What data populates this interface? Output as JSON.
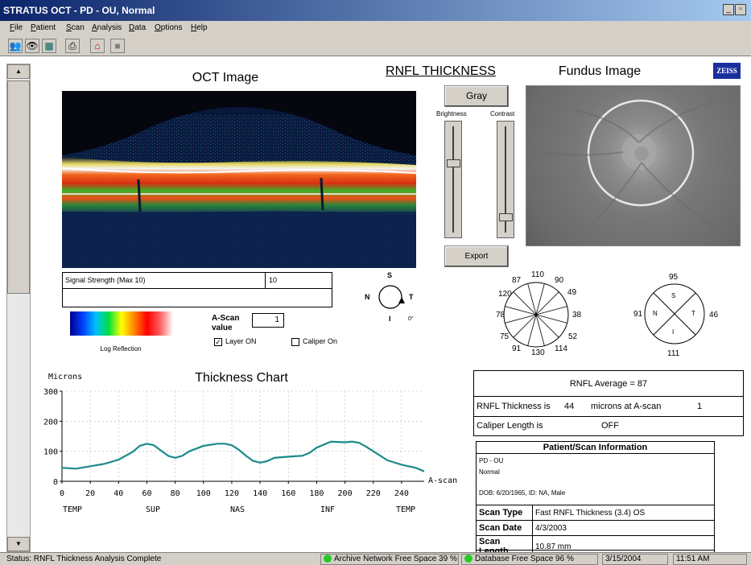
{
  "window": {
    "title": "STRATUS OCT - PD - OU, Normal",
    "logo_text": "zeiss",
    "controls": [
      "_",
      "▫",
      "×"
    ]
  },
  "menu": [
    "File",
    "Patient",
    "Scan",
    "Analysis",
    "Data",
    "Options",
    "Help"
  ],
  "toolbar": {
    "icons": [
      "patients-icon",
      "eye-icon",
      "scan-icon",
      "print-icon",
      "home-icon",
      "stop-icon"
    ]
  },
  "headings": {
    "oct": "OCT Image",
    "rnfl": "RNFL THICKNESS",
    "fundus": "Fundus Image",
    "brand": "ZEISS"
  },
  "controls": {
    "gray_button": "Gray",
    "brightness": "Brightness",
    "contrast": "Contrast",
    "export_button": "Export",
    "brightness_level": 0.32,
    "contrast_level": 0.82
  },
  "signal": {
    "label": "Signal Strength (Max 10)",
    "value": "10"
  },
  "legend": {
    "label": "Log Reflection"
  },
  "ascan": {
    "label_line1": "A-Scan",
    "label_line2": "value",
    "value": "1"
  },
  "checkboxes": {
    "layer_label": "Layer ON",
    "layer_checked": true,
    "caliper_label": "Caliper On",
    "caliper_checked": false
  },
  "orientation": {
    "S": "S",
    "N": "N",
    "T": "T",
    "I": "I",
    "deg": "0°"
  },
  "clock_values": [
    "110",
    "90",
    "49",
    "38",
    "52",
    "114",
    "130",
    "91",
    "75",
    "78",
    "120",
    "87"
  ],
  "quadrant_values": {
    "S": "95",
    "N": "91",
    "T": "46",
    "I": "111",
    "S_label": "S",
    "N_label": "N",
    "T_label": "T",
    "I_label": "I"
  },
  "thickness_chart": {
    "title": "Thickness Chart",
    "ylabel": "Microns",
    "xlabel": "A-scan",
    "y_ticks": [
      "0",
      "100",
      "200",
      "300"
    ],
    "x_ticks": [
      "0",
      "20",
      "40",
      "60",
      "80",
      "100",
      "120",
      "140",
      "160",
      "180",
      "200",
      "220",
      "240"
    ],
    "region_labels": [
      "TEMP",
      "SUP",
      "NAS",
      "INF",
      "TEMP"
    ]
  },
  "chart_data": {
    "type": "line",
    "title": "Thickness Chart",
    "xlabel": "A-scan",
    "ylabel": "Microns",
    "xlim": [
      0,
      256
    ],
    "ylim": [
      0,
      300
    ],
    "grid": true,
    "series": [
      {
        "color": "#1a8a8a",
        "x": [
          0,
          10,
          20,
          30,
          40,
          50,
          55,
          60,
          65,
          70,
          75,
          80,
          85,
          90,
          100,
          110,
          115,
          120,
          125,
          130,
          135,
          140,
          145,
          150,
          160,
          170,
          175,
          180,
          190,
          200,
          205,
          210,
          215,
          220,
          230,
          240,
          250,
          256
        ],
        "y": [
          45,
          42,
          50,
          58,
          72,
          98,
          118,
          125,
          120,
          102,
          85,
          78,
          85,
          100,
          118,
          125,
          125,
          120,
          105,
          85,
          68,
          62,
          67,
          78,
          82,
          85,
          95,
          112,
          132,
          130,
          132,
          128,
          115,
          100,
          70,
          55,
          45,
          33
        ]
      }
    ]
  },
  "rnfl_summary": {
    "average": "RNFL Average = 87",
    "thickness_prefix": "RNFL Thickness is",
    "thickness_value": "44",
    "thickness_suffix": "microns at A-scan",
    "ascan_value": "1",
    "caliper_label": "Caliper Length is",
    "caliper_value": "OFF"
  },
  "patient_info": {
    "header": "Patient/Scan Information",
    "line1": "PD - OU",
    "line2": "Normal",
    "dob": "DOB: 6/20/1965, ID: NA, Male",
    "rows": [
      {
        "label": "Scan Type",
        "value": "Fast RNFL Thickness (3.4) OS"
      },
      {
        "label": "Scan Date",
        "value": "4/3/2003"
      },
      {
        "label": "Scan Length",
        "value": "10.87 mm"
      }
    ]
  },
  "status": {
    "message": "Status: RNFL Thickness Analysis Complete",
    "archive": "Archive Network Free Space 39 %",
    "database": "Database Free Space 96 %",
    "date": "3/15/2004",
    "time": "11:51 AM",
    "indicator_color": "#22cc22"
  }
}
